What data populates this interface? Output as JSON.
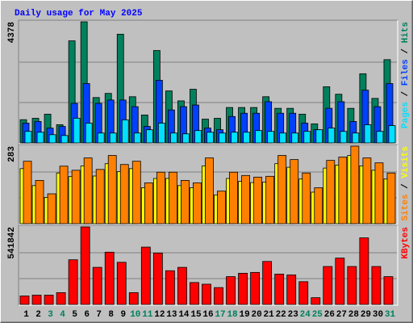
{
  "chart_data": [
    {
      "type": "bar",
      "title": "Daily usage for May 2025",
      "title_color": "#0000ff",
      "separator": " / ",
      "ylim": [
        0,
        4378
      ],
      "yticks": [
        4378
      ],
      "series": [
        {
          "name": "Hits",
          "color": "#00805c",
          "values": [
            840,
            890,
            1040,
            660,
            3690,
            4378,
            1640,
            1790,
            3930,
            1670,
            1010,
            3340,
            1880,
            1520,
            1940,
            860,
            890,
            1280,
            1280,
            1280,
            1670,
            1250,
            1250,
            1040,
            690,
            2030,
            1760,
            1250,
            2500,
            1610,
            3010
          ]
        },
        {
          "name": "Files",
          "color": "#0040ff",
          "values": [
            715,
            775,
            536,
            596,
            1430,
            2146,
            1430,
            1550,
            1550,
            1311,
            596,
            2265,
            1192,
            1311,
            1371,
            536,
            477,
            954,
            1073,
            1073,
            1490,
            1073,
            1073,
            715,
            477,
            1252,
            1490,
            775,
            1907,
            1311,
            2146
          ]
        },
        {
          "name": "Pages",
          "color": "#00e0ff",
          "values": [
            417,
            387,
            298,
            268,
            894,
            715,
            358,
            358,
            834,
            358,
            477,
            715,
            358,
            328,
            447,
            387,
            358,
            387,
            387,
            447,
            417,
            358,
            358,
            417,
            477,
            536,
            417,
            358,
            655,
            417,
            626
          ]
        }
      ]
    },
    {
      "type": "bar",
      "separator": " / ",
      "ylim": [
        0,
        283
      ],
      "yticks": [
        283
      ],
      "series": [
        {
          "name": "Visits",
          "color": "#ffff00",
          "values": [
            201,
            139,
            96,
            185,
            172,
            211,
            174,
            219,
            190,
            201,
            131,
            165,
            165,
            139,
            131,
            211,
            105,
            165,
            155,
            150,
            152,
            219,
            206,
            163,
            115,
            203,
            214,
            249,
            211,
            195,
            163
          ]
        },
        {
          "name": "Sites",
          "color": "#ff8000",
          "values": [
            228,
            158,
            109,
            210,
            195,
            240,
            198,
            249,
            216,
            228,
            149,
            188,
            188,
            158,
            149,
            240,
            119,
            188,
            176,
            170,
            173,
            249,
            234,
            185,
            131,
            231,
            243,
            283,
            240,
            222,
            185
          ]
        }
      ]
    },
    {
      "type": "bar",
      "ylim": [
        0,
        541842
      ],
      "yticks": [
        541842
      ],
      "categories": [
        "1",
        "2",
        "3",
        "4",
        "5",
        "6",
        "7",
        "8",
        "9",
        "10",
        "11",
        "12",
        "13",
        "14",
        "15",
        "16",
        "17",
        "18",
        "19",
        "20",
        "21",
        "22",
        "23",
        "24",
        "25",
        "26",
        "27",
        "28",
        "29",
        "30",
        "31"
      ],
      "category_colors": [
        "#000000",
        "#000000",
        "#00805c",
        "#00805c",
        "#000000",
        "#000000",
        "#000000",
        "#000000",
        "#000000",
        "#00805c",
        "#00805c",
        "#000000",
        "#000000",
        "#000000",
        "#000000",
        "#000000",
        "#00805c",
        "#00805c",
        "#000000",
        "#000000",
        "#000000",
        "#000000",
        "#000000",
        "#00805c",
        "#00805c",
        "#000000",
        "#000000",
        "#000000",
        "#000000",
        "#000000",
        "#00805c"
      ],
      "series": [
        {
          "name": "KBytes",
          "color": "#ff0000",
          "values": [
            58900,
            64790,
            64790,
            82460,
            312170,
            541842,
            259160,
            365180,
            294500,
            82460,
            400520,
            359290,
            235600,
            259160,
            153140,
            141360,
            117800,
            194370,
            217930,
            223820,
            300390,
            212040,
            206150,
            159030,
            47120,
            265050,
            323950,
            265050,
            465310,
            265050,
            194370
          ]
        }
      ]
    }
  ]
}
